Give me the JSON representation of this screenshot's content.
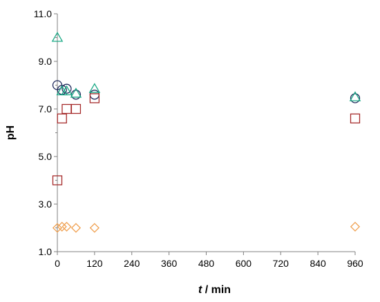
{
  "chart_data": {
    "type": "scatter",
    "xlabel_italic": "t",
    "xlabel_rest": " / min",
    "ylabel": "pH",
    "xlim": [
      0,
      960
    ],
    "ylim": [
      1.0,
      11.0
    ],
    "xticks": [
      0,
      120,
      240,
      360,
      480,
      600,
      720,
      840,
      960
    ],
    "yticks": [
      1.0,
      3.0,
      5.0,
      7.0,
      9.0,
      11.0
    ],
    "ytick_labels": [
      "1.0",
      "3.0",
      "5.0",
      "7.0",
      "9.0",
      "11.0"
    ],
    "grid": false,
    "series": [
      {
        "marker": "circle",
        "color": "#1f2a5c",
        "points": [
          [
            0,
            8.0
          ],
          [
            15,
            7.8
          ],
          [
            30,
            7.85
          ],
          [
            60,
            7.6
          ],
          [
            120,
            7.6
          ],
          [
            960,
            7.45
          ]
        ]
      },
      {
        "marker": "triangle",
        "color": "#17a884",
        "points": [
          [
            0,
            10.0
          ],
          [
            15,
            7.75
          ],
          [
            30,
            7.75
          ],
          [
            60,
            7.65
          ],
          [
            120,
            7.85
          ],
          [
            960,
            7.5
          ]
        ]
      },
      {
        "marker": "square",
        "color": "#a52a2a",
        "points": [
          [
            0,
            4.0
          ],
          [
            15,
            6.6
          ],
          [
            30,
            7.0
          ],
          [
            60,
            7.0
          ],
          [
            120,
            7.45
          ],
          [
            960,
            6.6
          ]
        ]
      },
      {
        "marker": "diamond",
        "color": "#f0a050",
        "points": [
          [
            0,
            2.0
          ],
          [
            15,
            2.05
          ],
          [
            30,
            2.05
          ],
          [
            60,
            2.0
          ],
          [
            120,
            2.0
          ],
          [
            960,
            2.05
          ]
        ]
      }
    ]
  }
}
